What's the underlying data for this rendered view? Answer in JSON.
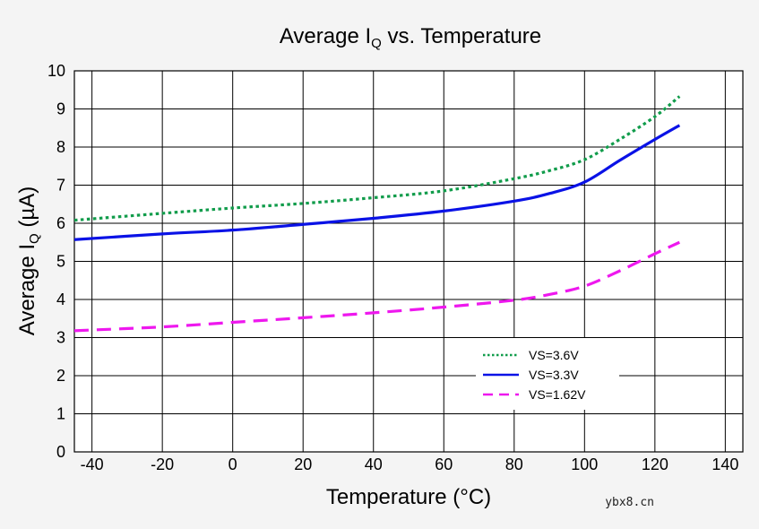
{
  "chart_data": {
    "type": "line",
    "title": "Average I",
    "title_sub": "Q",
    "title_suffix": " vs. Temperature",
    "xlabel": "Temperature (°C)",
    "ylabel_prefix": "Average I",
    "ylabel_sub": "Q",
    "ylabel_suffix": " (µA)",
    "xlim": [
      -45,
      145
    ],
    "ylim": [
      0,
      10
    ],
    "xticks": [
      -40,
      -20,
      0,
      20,
      40,
      60,
      80,
      100,
      120,
      140
    ],
    "yticks": [
      0,
      1,
      2,
      3,
      4,
      5,
      6,
      7,
      8,
      9,
      10
    ],
    "grid": true,
    "legend_position": "lower-right",
    "series": [
      {
        "name": "VS=3.6V",
        "color": "#119c4b",
        "style": "dotted",
        "x": [
          -45,
          -20,
          0,
          20,
          40,
          60,
          80,
          90,
          100,
          110,
          120,
          127
        ],
        "y": [
          6.08,
          6.26,
          6.4,
          6.52,
          6.67,
          6.85,
          7.17,
          7.38,
          7.67,
          8.2,
          8.8,
          9.33
        ]
      },
      {
        "name": "VS=3.3V",
        "color": "#0a12e6",
        "style": "solid",
        "x": [
          -45,
          -20,
          0,
          20,
          40,
          60,
          80,
          90,
          100,
          110,
          120,
          127
        ],
        "y": [
          5.57,
          5.72,
          5.82,
          5.97,
          6.13,
          6.32,
          6.58,
          6.78,
          7.08,
          7.65,
          8.2,
          8.57
        ]
      },
      {
        "name": "VS=1.62V",
        "color": "#ee18ee",
        "style": "dashed",
        "x": [
          -45,
          -20,
          0,
          20,
          40,
          60,
          80,
          90,
          100,
          110,
          120,
          127
        ],
        "y": [
          3.18,
          3.28,
          3.4,
          3.52,
          3.65,
          3.8,
          3.98,
          4.13,
          4.35,
          4.75,
          5.2,
          5.5
        ]
      }
    ]
  },
  "watermark": "ybx8.cn"
}
